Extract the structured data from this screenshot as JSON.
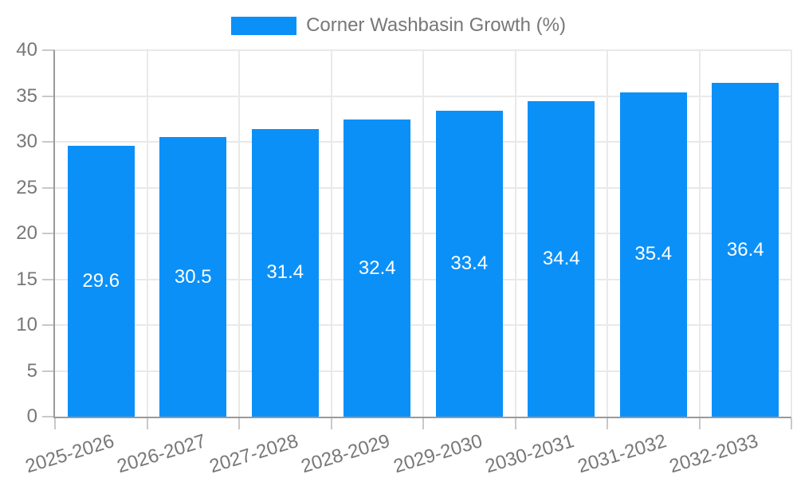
{
  "legend": {
    "label": "Corner Washbasin Growth (%)"
  },
  "colors": {
    "bar": "#0b90f8",
    "bar_label_text": "#ffffff",
    "axis_line": "#9a9a9a",
    "gridline": "#e9e9e9",
    "tick_mark": "#c9c9c9",
    "tick_text": "#777777",
    "background": "#ffffff"
  },
  "chart_data": {
    "type": "bar",
    "title": "",
    "series_name": "Corner Washbasin Growth (%)",
    "categories": [
      "2025-2026",
      "2026-2027",
      "2027-2028",
      "2028-2029",
      "2029-2030",
      "2030-2031",
      "2031-2032",
      "2032-2033"
    ],
    "values": [
      29.6,
      30.5,
      31.4,
      32.4,
      33.4,
      34.4,
      35.4,
      36.4
    ],
    "bar_labels": [
      "29.6",
      "30.5",
      "31.4",
      "32.4",
      "33.4",
      "34.4",
      "35.4",
      "36.4"
    ],
    "xlabel": "",
    "ylabel": "",
    "ylim": [
      0,
      40
    ],
    "yticks": [
      0,
      5,
      10,
      15,
      20,
      25,
      30,
      35,
      40
    ],
    "grid": true,
    "legend_position": "top-center",
    "x_tick_rotation_deg": -17,
    "bar_value_label_position": "center-inside"
  }
}
